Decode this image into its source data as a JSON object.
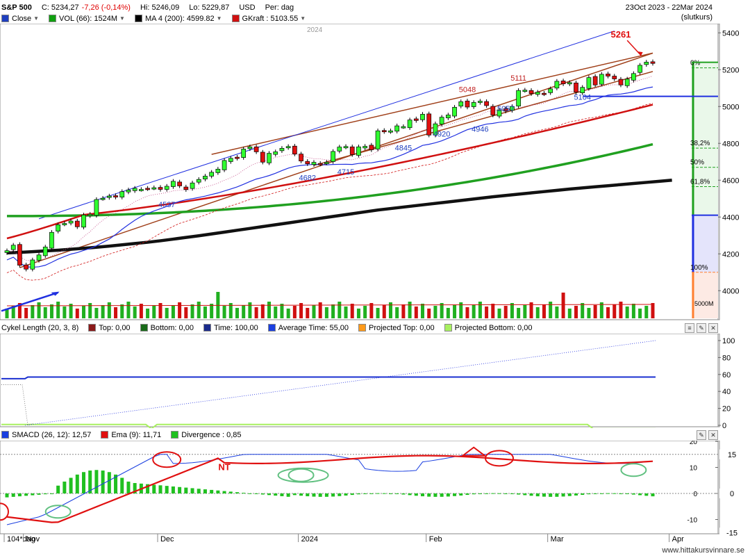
{
  "header": {
    "symbol": "S&P 500",
    "close": "C: 5234,27",
    "change": "-7,26 (-0,14%)",
    "high": "Hi: 5246,09",
    "low": "Lo: 5229,87",
    "currency": "USD",
    "period": "Per: dag",
    "date_range": "23Oct 2023 - 22Mar 2024",
    "date_note": "(slutkurs)",
    "legend": [
      {
        "label": "Close",
        "color": "#1f3fbf"
      },
      {
        "label": "VOL (66): 1524M",
        "color": "#10a010"
      },
      {
        "label": "MA 4 (200): 4599.82",
        "color": "#000000"
      },
      {
        "label": "GKraft : 5103.55",
        "color": "#d01010"
      }
    ]
  },
  "cycle_panel": {
    "legend": [
      {
        "label": "Cykel Length (20, 3, 8)",
        "color": null
      },
      {
        "label": "Top: 0,00",
        "color": "#8b1a1a"
      },
      {
        "label": "Bottom: 0,00",
        "color": "#1a6b1a"
      },
      {
        "label": "Time: 100,00",
        "color": "#1a2a8b"
      },
      {
        "label": "Average Time: 55,00",
        "color": "#1a3fe0"
      },
      {
        "label": "Projected Top: 0,00",
        "color": "#ff9a1a"
      },
      {
        "label": "Projected Bottom: 0,00",
        "color": "#a8f060"
      }
    ],
    "y_ticks": [
      "100",
      "80",
      "60",
      "40",
      "20",
      "0"
    ]
  },
  "macd_panel": {
    "legend": [
      {
        "label": "SMACD (26, 12): 12,57",
        "color": "#1a3fe0"
      },
      {
        "label": "Ema (9): 11,71",
        "color": "#e01010"
      },
      {
        "label": "Divergence : 0,85",
        "color": "#20c020"
      }
    ],
    "y_ticks": [
      "20",
      "10",
      "0",
      "-10"
    ],
    "value_badges": [
      "15",
      "0",
      "-15"
    ],
    "annotation": "NT"
  },
  "xaxis": {
    "labels": [
      "104*dag",
      "Nov",
      "Dec",
      "2024",
      "Feb",
      "Mar",
      "Apr"
    ],
    "year_marker": "2024"
  },
  "fib_labels": [
    "0%",
    "38,2%",
    "50%",
    "61,8%",
    "100%"
  ],
  "volume_label": "5000M",
  "footer": "www.hittakursvinnare.se",
  "chart_data": {
    "type": "line",
    "title": "S&P 500",
    "ylim": [
      3850,
      5450
    ],
    "y_ticks": [
      4000,
      4200,
      4400,
      4600,
      4800,
      5000,
      5200,
      5400
    ],
    "price_labels": [
      {
        "text": "5261",
        "color": "#e01010",
        "value": 5261
      },
      {
        "text": "5111",
        "color": "#c02020",
        "value": 5111
      },
      {
        "text": "5048",
        "color": "#c02020",
        "value": 5048
      },
      {
        "text": "5104",
        "color": "#1f3fbf",
        "value": 5104
      },
      {
        "text": "5057",
        "color": "#1f3fbf",
        "value": 5057
      },
      {
        "text": "4946",
        "color": "#1f3fbf",
        "value": 4946
      },
      {
        "text": "4920",
        "color": "#1f3fbf",
        "value": 4920
      },
      {
        "text": "4845",
        "color": "#1f3fbf",
        "value": 4845
      },
      {
        "text": "4715",
        "color": "#1f3fbf",
        "value": 4715
      },
      {
        "text": "4682",
        "color": "#1f3fbf",
        "value": 4682
      },
      {
        "text": "4537",
        "color": "#1f3fbf",
        "value": 4537
      }
    ],
    "closes": [
      4217,
      4247,
      4138,
      4117,
      4167,
      4194,
      4237,
      4317,
      4358,
      4365,
      4378,
      4347,
      4411,
      4415,
      4495,
      4502,
      4514,
      4508,
      4538,
      4547,
      4556,
      4550,
      4554,
      4559,
      4550,
      4567,
      4594,
      4569,
      4549,
      4585,
      4604,
      4622,
      4643,
      4660,
      4707,
      4719,
      4719,
      4769,
      4781,
      4754,
      4698,
      4746,
      4754,
      4773,
      4783,
      4742,
      4704,
      4689,
      4697,
      4688,
      4697,
      4756,
      4780,
      4783,
      4739,
      4781,
      4784,
      4765,
      4868,
      4864,
      4868,
      4895,
      4891,
      4927,
      4924,
      4958,
      4845,
      4906,
      4942,
      4954,
      4996,
      5026,
      4997,
      5022,
      5029,
      5005,
      4954,
      4982,
      4975,
      5000,
      5087,
      5089,
      5070,
      5078,
      5069,
      5096,
      5137,
      5123,
      5130,
      5078,
      5104,
      5157,
      5117,
      5175,
      5165,
      5150,
      5117,
      5149,
      5179,
      5224,
      5241,
      5234
    ],
    "ma200": [
      4205,
      4208,
      4212,
      4216,
      4220,
      4225,
      4230,
      4236,
      4242,
      4249,
      4256,
      4263,
      4271,
      4280,
      4289,
      4298,
      4308,
      4318,
      4328,
      4338,
      4348,
      4358,
      4368,
      4378,
      4388,
      4398,
      4408,
      4418,
      4428,
      4438,
      4446,
      4454,
      4462,
      4470,
      4478,
      4486,
      4494,
      4502,
      4510,
      4517,
      4524,
      4531,
      4538,
      4545,
      4552,
      4558,
      4564,
      4570,
      4576,
      4582,
      4588,
      4594,
      4600
    ],
    "volume": [
      1524
    ]
  }
}
